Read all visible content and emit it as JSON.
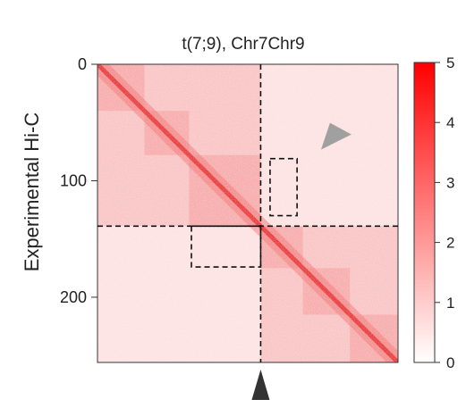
{
  "chart_data": {
    "type": "heatmap",
    "title": "t(7;9), Chr7Chr9",
    "ylabel": "Experimental Hi-C",
    "xlabel": "",
    "matrix_size": 256,
    "yticks": [
      0,
      100,
      200
    ],
    "ytick_labels": [
      "0",
      "100",
      "200"
    ],
    "colorbar": {
      "min": 0,
      "max": 5,
      "ticks": [
        0,
        1,
        2,
        3,
        4,
        5
      ],
      "tick_labels": [
        "0",
        "1",
        "2",
        "3",
        "4",
        "5"
      ],
      "color_low": "#ffffff",
      "color_high": "#ff0000"
    },
    "breakpoint": 139,
    "domains": [
      [
        0,
        40
      ],
      [
        40,
        78
      ],
      [
        78,
        139
      ],
      [
        139,
        175
      ],
      [
        175,
        215
      ],
      [
        215,
        256
      ]
    ],
    "dashed_boxes": [
      {
        "name": "upper-box",
        "x_range": [
          147,
          170
        ],
        "y_range": [
          81,
          130
        ]
      },
      {
        "name": "lower-box",
        "x_range": [
          80,
          139
        ],
        "y_range": [
          139,
          174
        ]
      }
    ],
    "arrows": [
      {
        "name": "gray-arrowhead",
        "color": "#a0a0a0",
        "position": [
          195,
          61
        ]
      },
      {
        "name": "black-arrowhead",
        "color": "#333333",
        "position": [
          139,
          264
        ]
      }
    ]
  }
}
